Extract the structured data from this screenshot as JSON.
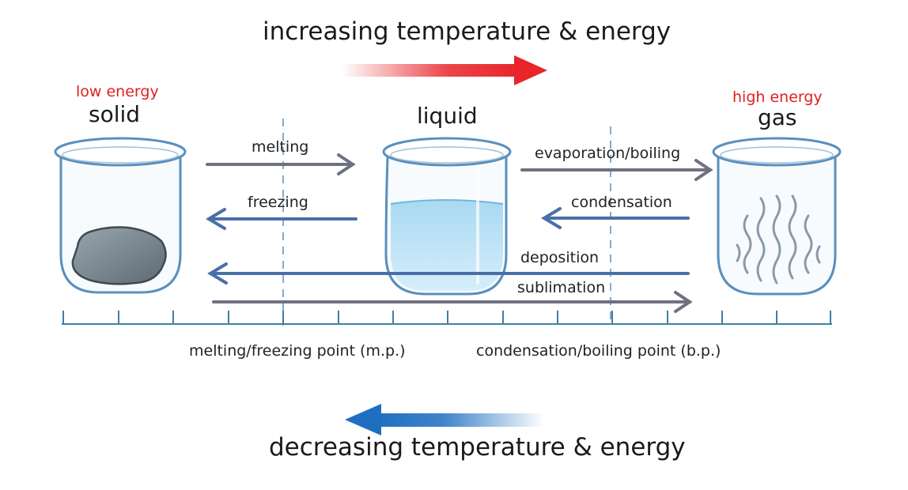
{
  "title_top": "increasing temperature & energy",
  "title_bottom": "decreasing temperature & energy",
  "states": {
    "solid": {
      "energy": "low energy",
      "label": "solid"
    },
    "liquid": {
      "label": "liquid"
    },
    "gas": {
      "energy": "high energy",
      "label": "gas"
    }
  },
  "processes": {
    "melting": "melting",
    "freezing": "freezing",
    "evaporation": "evaporation/boiling",
    "condensation": "condensation",
    "deposition": "deposition",
    "sublimation": "sublimation"
  },
  "points": {
    "mp": "melting/freezing point (m.p.)",
    "bp": "condensation/boiling point (b.p.)"
  },
  "colors": {
    "hot": "#e8252a",
    "cold": "#1f6fc1",
    "forward_arrow": "#6f7080",
    "backward_arrow": "#4a6fa8",
    "beaker": "#5a8fbd",
    "water": "#bde3f5",
    "rock": "#7d8a93",
    "vapor": "#8a9aa8",
    "energy_label": "#e02020",
    "axis": "#3f7fa6"
  }
}
